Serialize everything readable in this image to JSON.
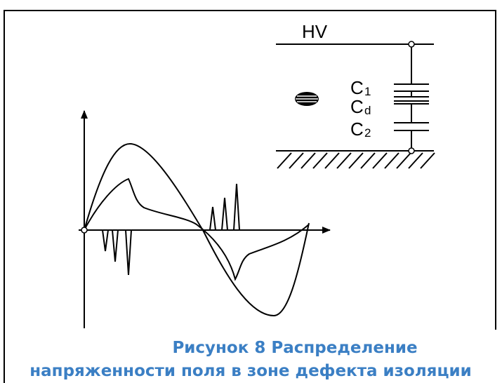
{
  "labels": {
    "hv": "HV",
    "c1": "C",
    "c1_sub": "1",
    "cd": "C",
    "cd_sub": "d",
    "c2": "C",
    "c2_sub": "2"
  },
  "caption": {
    "line1": "Рисунок 8 Распределение",
    "line2": "напряженности поля в зоне дефекта изоляции"
  }
}
